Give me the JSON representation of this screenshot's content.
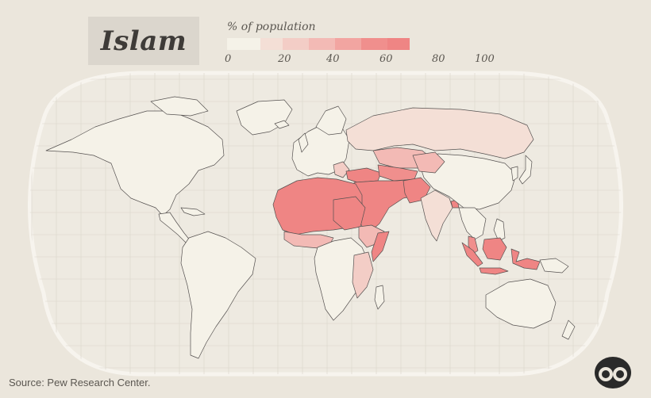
{
  "title": "Islam",
  "legend": {
    "title": "% of population",
    "ticks": [
      "0",
      "20",
      "40",
      "60",
      "80",
      "100"
    ],
    "colors": [
      "#f5f2e8",
      "#f4dfd6",
      "#f3cdc6",
      "#f3bab5",
      "#f2a5a1",
      "#f08f8d",
      "#ef8584"
    ]
  },
  "source": "Source: Pew Research Center.",
  "colors": {
    "background": "#ebe6dc",
    "ocean": "#eeeae1",
    "border": "#555150",
    "low": "#f5f2e8"
  },
  "icons": {
    "logo": "binoculars-logo"
  }
}
